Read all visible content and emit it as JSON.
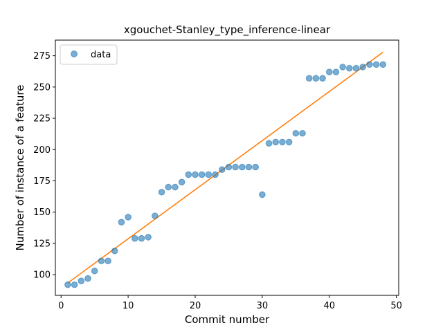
{
  "chart_data": {
    "type": "scatter",
    "title": "xgouchet-Stanley_type_inference-linear",
    "xlabel": "Commit number",
    "ylabel": "Number of instance of a feature",
    "xlim": [
      -0.85,
      50.35
    ],
    "ylim": [
      83.5,
      287.5
    ],
    "xticks": [
      0,
      10,
      20,
      30,
      40,
      50
    ],
    "yticks": [
      100,
      125,
      150,
      175,
      200,
      225,
      250,
      275
    ],
    "legend": {
      "placement": "top-left",
      "entries": [
        "data"
      ]
    },
    "grid": false,
    "series": [
      {
        "name": "data",
        "kind": "points",
        "color": "#1f77b4",
        "x": [
          1,
          2,
          3,
          4,
          5,
          6,
          7,
          8,
          9,
          10,
          11,
          12,
          13,
          14,
          15,
          16,
          17,
          18,
          19,
          20,
          21,
          22,
          23,
          24,
          25,
          26,
          27,
          28,
          29,
          30,
          31,
          32,
          33,
          34,
          35,
          36,
          37,
          38,
          39,
          40,
          41,
          42,
          43,
          44,
          45,
          46,
          47,
          48
        ],
        "y": [
          92,
          92,
          95,
          97,
          103,
          111,
          111,
          119,
          142,
          146,
          129,
          129,
          130,
          147,
          166,
          170,
          170,
          174,
          180,
          180,
          180,
          180,
          180,
          184,
          186,
          186,
          186,
          186,
          186,
          164,
          205,
          206,
          206,
          206,
          213,
          213,
          257,
          257,
          257,
          262,
          262,
          266,
          265,
          265,
          266,
          268,
          268,
          268
        ]
      },
      {
        "kind": "fit-line",
        "color": "#ff7f0e",
        "x": [
          1,
          48
        ],
        "y": [
          93.4,
          277.8
        ]
      }
    ]
  }
}
